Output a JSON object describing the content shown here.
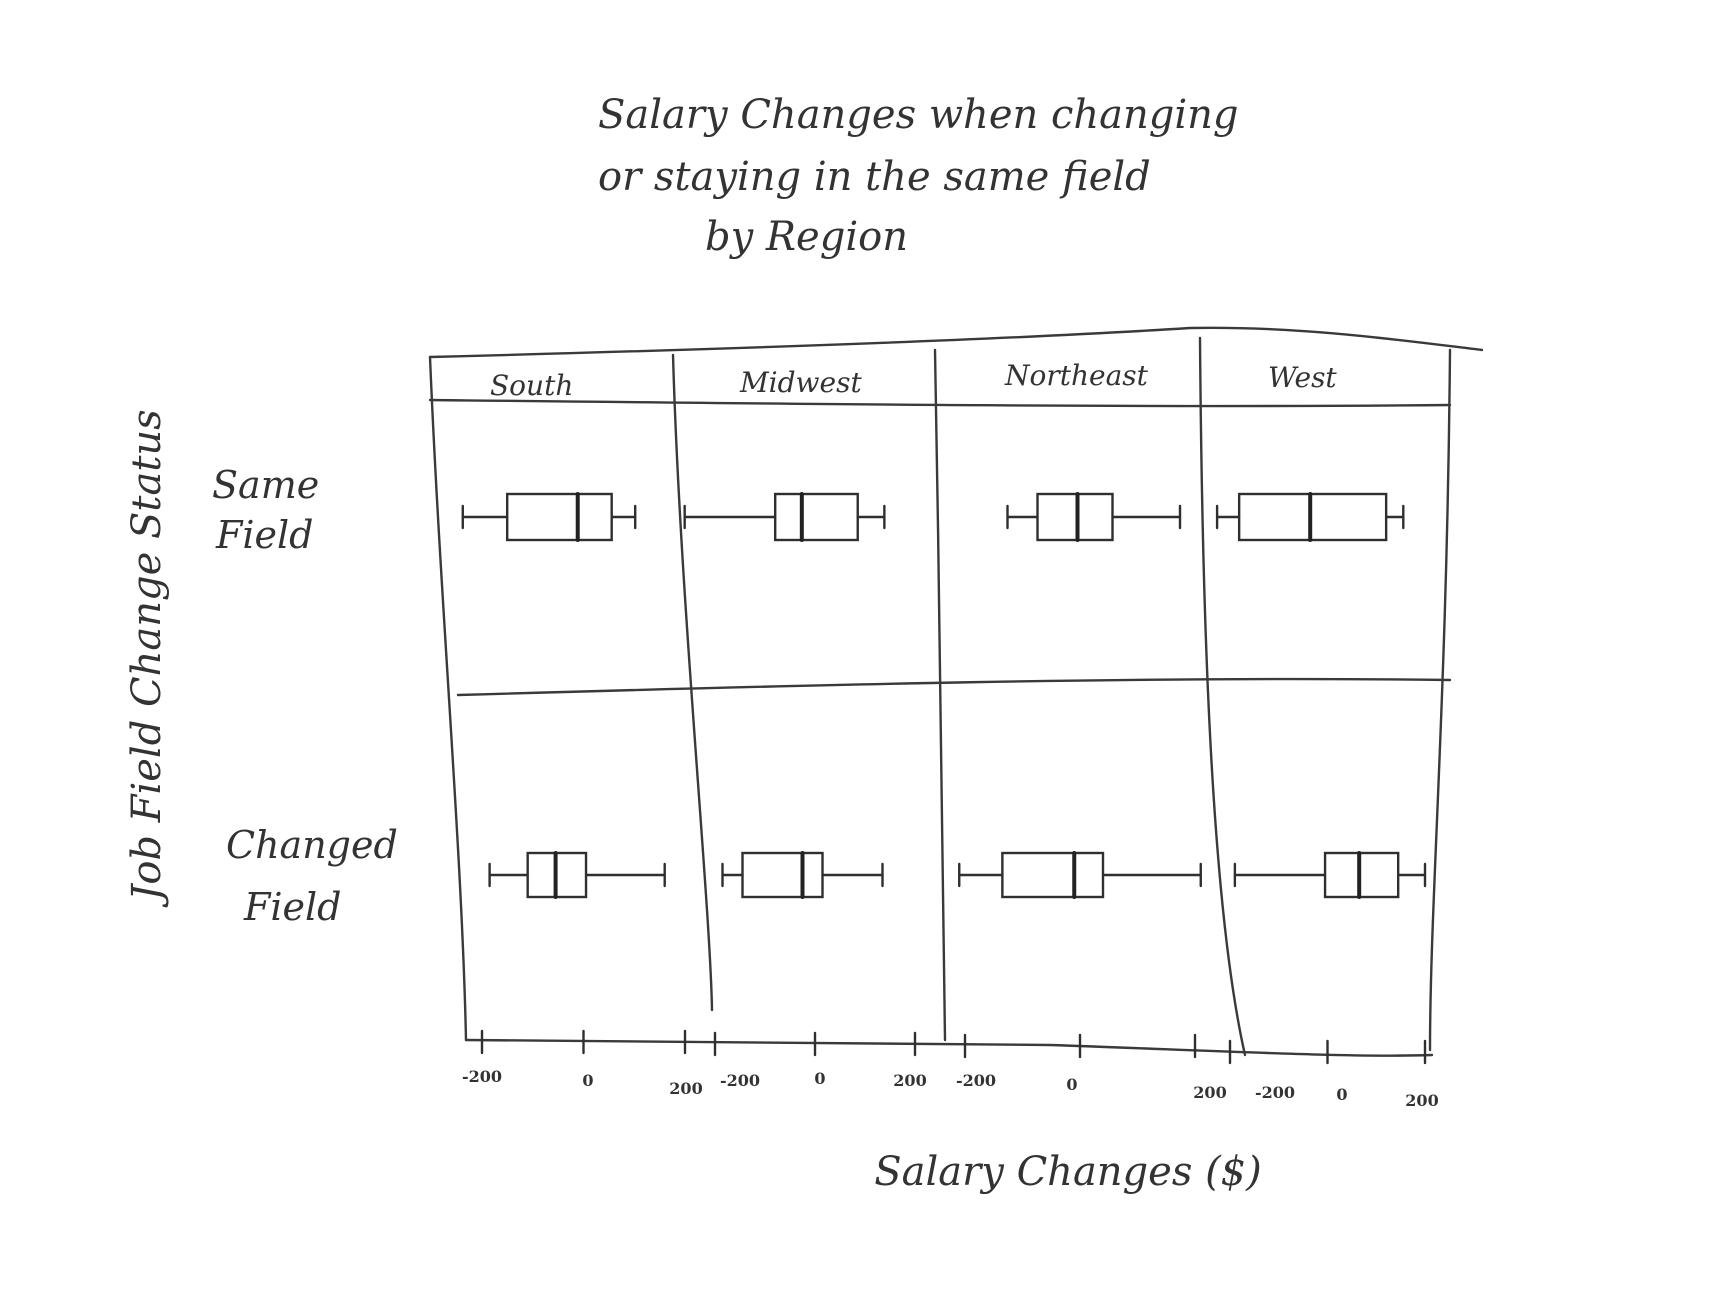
{
  "chart_data": {
    "type": "boxplot",
    "title": [
      "Salary Changes when changing",
      "or staying in the same field",
      "by Region"
    ],
    "xlabel": "Salary Changes ($)",
    "ylabel": "Job Field Change Status",
    "facets": [
      "South",
      "Midwest",
      "Northeast",
      "West"
    ],
    "rows": [
      {
        "label": [
          "Same",
          "Field"
        ]
      },
      {
        "label": [
          "Changed",
          "Field"
        ]
      }
    ],
    "tick_labels": [
      [
        "-200",
        "0",
        "200"
      ],
      [
        "-200",
        "0",
        "200"
      ],
      [
        "-200",
        "0",
        "200"
      ],
      [
        "-200",
        "0",
        "200"
      ]
    ],
    "xlim": [
      -220,
      220
    ],
    "panels": [
      {
        "facet": "South",
        "boxes": [
          {
            "row": "Same Field",
            "min": -210,
            "q1": -125,
            "median": 10,
            "q3": 75,
            "max": 120
          },
          {
            "row": "Changed Field",
            "min": -185,
            "q1": -110,
            "median": -55,
            "q3": 5,
            "max": 160
          }
        ]
      },
      {
        "facet": "Midwest",
        "boxes": [
          {
            "row": "Same Field",
            "min": -210,
            "q1": -40,
            "median": 10,
            "q3": 115,
            "max": 165
          },
          {
            "row": "Changed Field",
            "min": -185,
            "q1": -145,
            "median": -25,
            "q3": 15,
            "max": 135
          }
        ]
      },
      {
        "facet": "Northeast",
        "boxes": [
          {
            "row": "Same Field",
            "min": -155,
            "q1": -95,
            "median": -15,
            "q3": 55,
            "max": 190
          },
          {
            "row": "Changed Field",
            "min": -210,
            "q1": -135,
            "median": -10,
            "q3": 40,
            "max": 210
          }
        ]
      },
      {
        "facet": "West",
        "boxes": [
          {
            "row": "Same Field",
            "min": -210,
            "q1": -165,
            "median": -20,
            "q3": 135,
            "max": 170
          },
          {
            "row": "Changed Field",
            "min": -190,
            "q1": -5,
            "median": 65,
            "q3": 145,
            "max": 200
          }
        ]
      }
    ],
    "legend": "none",
    "grid": false
  }
}
